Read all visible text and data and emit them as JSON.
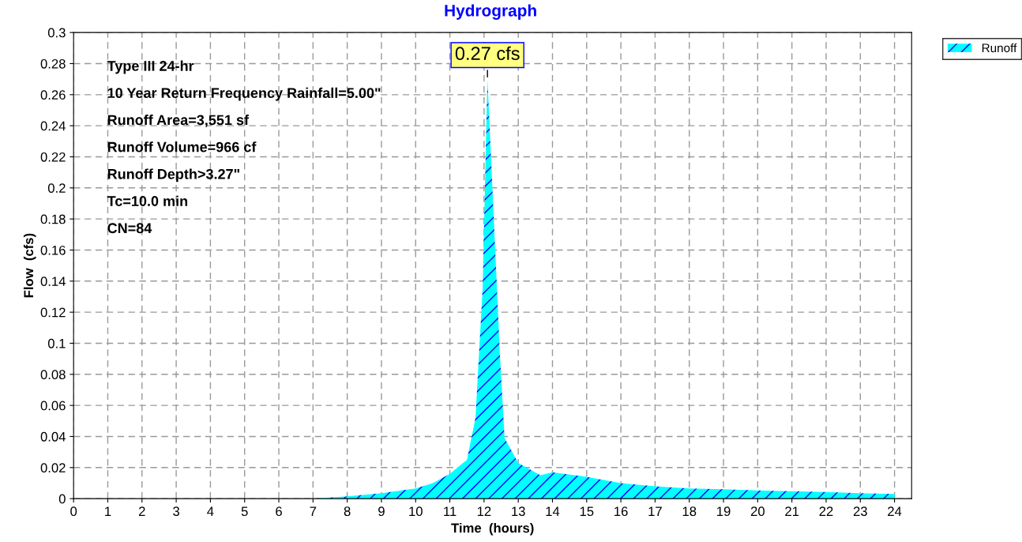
{
  "chart_data": {
    "type": "area",
    "title": "Hydrograph",
    "xlabel": "Time  (hours)",
    "ylabel": "Flow  (cfs)",
    "x": [
      0,
      1,
      2,
      3,
      4,
      5,
      6,
      7,
      8,
      9,
      10,
      10.5,
      11,
      11.5,
      11.75,
      11.96,
      12.08,
      12.1,
      12.47,
      12.6,
      13.0,
      13.65,
      14,
      15,
      16,
      17,
      18,
      19,
      20,
      21,
      22,
      23,
      24
    ],
    "series": [
      {
        "name": "Runoff",
        "color": "#00ffff",
        "values": [
          0,
          0,
          0,
          0,
          0,
          0,
          0,
          0,
          0.0015,
          0.0035,
          0.0066,
          0.01,
          0.016,
          0.025,
          0.052,
          0.136,
          0.253,
          0.27,
          0.09,
          0.039,
          0.023,
          0.015,
          0.017,
          0.014,
          0.01,
          0.008,
          0.0066,
          0.006,
          0.0053,
          0.0048,
          0.0043,
          0.0035,
          0.003
        ]
      }
    ],
    "xlim": [
      0,
      24.5
    ],
    "ylim": [
      0,
      0.3
    ],
    "xticks": [
      0,
      1,
      2,
      3,
      4,
      5,
      6,
      7,
      8,
      9,
      10,
      11,
      12,
      13,
      14,
      15,
      16,
      17,
      18,
      19,
      20,
      21,
      22,
      23,
      24
    ],
    "yticks": [
      0,
      0.02,
      0.04,
      0.06,
      0.08,
      0.1,
      0.12,
      0.14,
      0.16,
      0.18,
      0.2,
      0.22,
      0.24,
      0.26,
      0.28,
      0.3
    ],
    "grid": true,
    "legend": "top right",
    "line_style": "solid",
    "annotations": [
      {
        "text": "0.27 cfs",
        "x": 12.1,
        "y": 0.27
      },
      "Type III 24-hr",
      "10 Year Return Frequency Rainfall=5.00\"",
      "Runoff Area=3,551 sf",
      "Runoff Volume=966 cf",
      "Runoff Depth>3.27\"",
      "Tc=10.0 min",
      "CN=84"
    ]
  }
}
